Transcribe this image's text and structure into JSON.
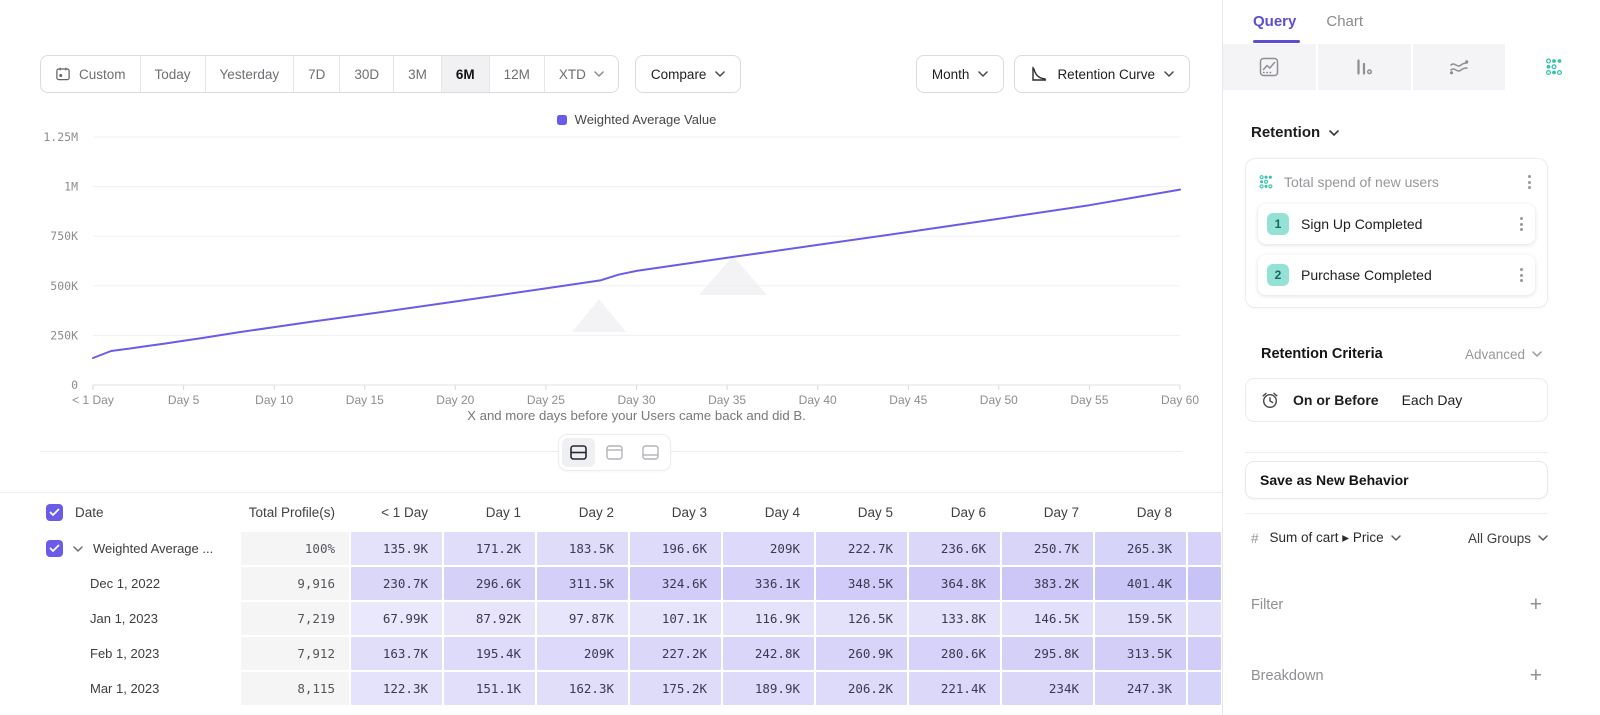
{
  "colors": {
    "accent_purple": "#6a5ce8",
    "cell_purple": "#6a5ce8",
    "teal": "#35c2ae",
    "teal_badge_bg": "#93e2d5",
    "teal_badge_text": "#17695c"
  },
  "toolbar": {
    "ranges": [
      {
        "label": "Custom",
        "icon": "calendar"
      },
      {
        "label": "Today"
      },
      {
        "label": "Yesterday"
      },
      {
        "label": "7D"
      },
      {
        "label": "30D"
      },
      {
        "label": "3M"
      },
      {
        "label": "6M",
        "selected": true
      },
      {
        "label": "12M"
      },
      {
        "label": "XTD",
        "chevron": true
      }
    ],
    "compare": "Compare",
    "granularity": "Month",
    "chart_type": "Retention Curve"
  },
  "chart": {
    "legend": "Weighted Average Value",
    "caption": "X and more days before your Users came back and did B.",
    "y_ticks": [
      {
        "label": "1.25M",
        "value": 1250000
      },
      {
        "label": "1M",
        "value": 1000000
      },
      {
        "label": "750K",
        "value": 750000
      },
      {
        "label": "500K",
        "value": 500000
      },
      {
        "label": "250K",
        "value": 250000
      },
      {
        "label": "0",
        "value": 0
      }
    ],
    "x_ticks": [
      {
        "label": "< 1 Day",
        "day": 0
      },
      {
        "label": "Day 5",
        "day": 5
      },
      {
        "label": "Day 10",
        "day": 10
      },
      {
        "label": "Day 15",
        "day": 15
      },
      {
        "label": "Day 20",
        "day": 20
      },
      {
        "label": "Day 25",
        "day": 25
      },
      {
        "label": "Day 30",
        "day": 30
      },
      {
        "label": "Day 35",
        "day": 35
      },
      {
        "label": "Day 40",
        "day": 40
      },
      {
        "label": "Day 45",
        "day": 45
      },
      {
        "label": "Day 50",
        "day": 50
      },
      {
        "label": "Day 55",
        "day": 55
      },
      {
        "label": "Day 60",
        "day": 60
      }
    ]
  },
  "chart_data": {
    "type": "line",
    "title": "",
    "xlabel": "X and more days before your Users came back and did B.",
    "ylabel": "",
    "ylim": [
      0,
      1250000
    ],
    "xlim_days": [
      0,
      60
    ],
    "grid": "horizontal",
    "legend_position": "top-center",
    "series": [
      {
        "name": "Weighted Average Value",
        "color": "#6a5ce8",
        "points": [
          [
            0,
            135900
          ],
          [
            1,
            171200
          ],
          [
            2,
            183500
          ],
          [
            3,
            196600
          ],
          [
            4,
            209000
          ],
          [
            5,
            222700
          ],
          [
            6,
            236600
          ],
          [
            7,
            250700
          ],
          [
            8,
            265300
          ],
          [
            12,
            318000
          ],
          [
            15,
            356000
          ],
          [
            20,
            421000
          ],
          [
            25,
            487000
          ],
          [
            28,
            527000
          ],
          [
            29,
            556000
          ],
          [
            30,
            575000
          ],
          [
            35,
            641000
          ],
          [
            40,
            706000
          ],
          [
            45,
            771000
          ],
          [
            50,
            838000
          ],
          [
            55,
            906000
          ],
          [
            60,
            985000
          ]
        ]
      }
    ]
  },
  "layout_toggles": {
    "options": [
      "split-view",
      "table-top",
      "table-bottom"
    ],
    "selected": "split-view"
  },
  "table": {
    "columns": [
      "Date",
      "Total Profile(s)",
      "< 1 Day",
      "Day 1",
      "Day 2",
      "Day 3",
      "Day 4",
      "Day 5",
      "Day 6",
      "Day 7",
      "Day 8"
    ],
    "rows": [
      {
        "label": "Weighted Average ...",
        "checked": true,
        "expandable": true,
        "total": "100%",
        "values": [
          "135.9K",
          "171.2K",
          "183.5K",
          "196.6K",
          "209K",
          "222.7K",
          "236.6K",
          "250.7K",
          "265.3K"
        ]
      },
      {
        "label": "Dec 1, 2022",
        "total": "9,916",
        "values": [
          "230.7K",
          "296.6K",
          "311.5K",
          "324.6K",
          "336.1K",
          "348.5K",
          "364.8K",
          "383.2K",
          "401.4K"
        ]
      },
      {
        "label": "Jan 1, 2023",
        "total": "7,219",
        "values": [
          "67.99K",
          "87.92K",
          "97.87K",
          "107.1K",
          "116.9K",
          "126.5K",
          "133.8K",
          "146.5K",
          "159.5K"
        ]
      },
      {
        "label": "Feb 1, 2023",
        "total": "7,912",
        "values": [
          "163.7K",
          "195.4K",
          "209K",
          "227.2K",
          "242.8K",
          "260.9K",
          "280.6K",
          "295.8K",
          "313.5K"
        ]
      },
      {
        "label": "Mar 1, 2023",
        "total": "8,115",
        "values": [
          "122.3K",
          "151.1K",
          "162.3K",
          "175.2K",
          "189.9K",
          "206.2K",
          "221.4K",
          "234K",
          "247.3K"
        ]
      }
    ]
  },
  "sidebar": {
    "tabs": [
      {
        "label": "Query",
        "active": true
      },
      {
        "label": "Chart",
        "active": false
      }
    ],
    "icon_tabs": [
      {
        "name": "insights",
        "active": false
      },
      {
        "name": "funnels",
        "active": false
      },
      {
        "name": "flows",
        "active": false
      },
      {
        "name": "retention",
        "active": true
      }
    ],
    "section_title": "Retention",
    "behavior": {
      "title": "Total spend of new users",
      "steps": [
        {
          "num": "1",
          "label": "Sign Up Completed"
        },
        {
          "num": "2",
          "label": "Purchase Completed"
        }
      ]
    },
    "criteria": {
      "title": "Retention Criteria",
      "mode": "Advanced",
      "condition": "On or Before",
      "window": "Each Day"
    },
    "save_behavior": "Save as New Behavior",
    "measure": {
      "symbol": "#",
      "property": "Sum of cart ▸ Price",
      "groups": "All Groups"
    },
    "sections": [
      {
        "label": "Filter"
      },
      {
        "label": "Breakdown"
      }
    ]
  }
}
